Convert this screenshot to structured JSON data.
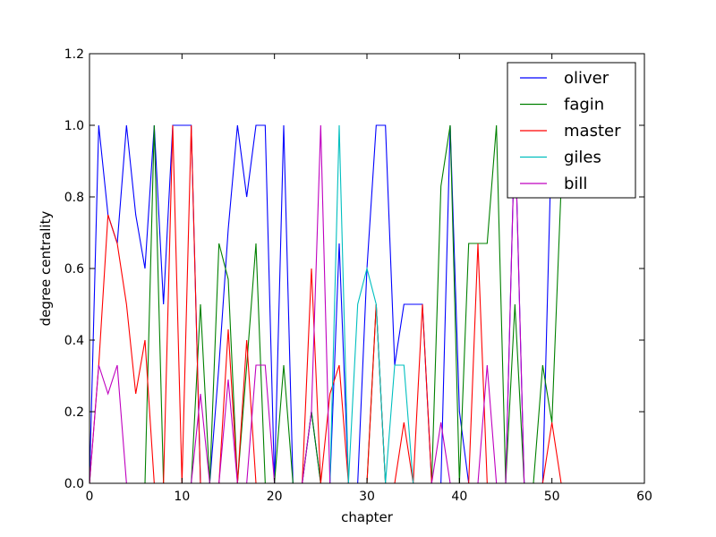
{
  "chart_data": {
    "type": "line",
    "xlabel": "chapter",
    "ylabel": "degree centrality",
    "xlim": [
      0,
      60
    ],
    "ylim": [
      0,
      1.2
    ],
    "xticks": [
      "0",
      "10",
      "20",
      "30",
      "40",
      "50",
      "60"
    ],
    "yticks": [
      "0.0",
      "0.2",
      "0.4",
      "0.6",
      "0.8",
      "1.0",
      "1.2"
    ],
    "grid": false,
    "legend_position": "top-right",
    "series": [
      {
        "name": "oliver",
        "color": "#0000ff",
        "x": [
          0,
          1,
          2,
          3,
          4,
          5,
          6,
          7,
          8,
          9,
          10,
          11,
          12,
          13,
          14,
          15,
          16,
          17,
          18,
          19,
          20,
          21,
          22,
          23,
          24,
          25,
          26,
          27,
          28,
          29,
          30,
          31,
          32,
          33,
          34,
          35,
          36,
          37,
          38,
          39,
          40,
          41,
          42,
          43,
          44,
          45,
          46,
          47,
          48,
          49,
          50,
          51
        ],
        "y": [
          0,
          1,
          0.75,
          0.67,
          1,
          0.75,
          0.6,
          1,
          0.5,
          1,
          1,
          1,
          0,
          0,
          0.33,
          0.71,
          1,
          0.8,
          1,
          1,
          0,
          1,
          0,
          0,
          0.2,
          0,
          0,
          0.67,
          0,
          0,
          0.6,
          1,
          1,
          0.33,
          0.5,
          0.5,
          0.5,
          0,
          0,
          1,
          0.2,
          0,
          0,
          0,
          0,
          0,
          1,
          0,
          0,
          0,
          1,
          0.83
        ]
      },
      {
        "name": "fagin",
        "color": "#008000",
        "x": [
          0,
          1,
          2,
          3,
          4,
          5,
          6,
          7,
          8,
          9,
          10,
          11,
          12,
          13,
          14,
          15,
          16,
          17,
          18,
          19,
          20,
          21,
          22,
          23,
          24,
          25,
          26,
          27,
          28,
          29,
          30,
          31,
          32,
          33,
          34,
          35,
          36,
          37,
          38,
          39,
          40,
          41,
          42,
          43,
          44,
          45,
          46,
          47,
          48,
          49,
          50,
          51
        ],
        "y": [
          0,
          0,
          0,
          0,
          0,
          0,
          0,
          1,
          0,
          0,
          0,
          0,
          0.5,
          0,
          0.67,
          0.57,
          0,
          0.33,
          0.67,
          0,
          0,
          0.33,
          0,
          0,
          0.2,
          0,
          0,
          0,
          0,
          0,
          0,
          0.5,
          0,
          0,
          0,
          0,
          0,
          0,
          0.83,
          1,
          0,
          0.67,
          0.67,
          0.67,
          1,
          0,
          0.5,
          0,
          0,
          0.33,
          0.17,
          0.83
        ]
      },
      {
        "name": "master",
        "color": "#ff0000",
        "x": [
          0,
          1,
          2,
          3,
          4,
          5,
          6,
          7,
          8,
          9,
          10,
          11,
          12,
          13,
          14,
          15,
          16,
          17,
          18,
          19,
          20,
          21,
          22,
          23,
          24,
          25,
          26,
          27,
          28,
          29,
          30,
          31,
          32,
          33,
          34,
          35,
          36,
          37,
          38,
          39,
          40,
          41,
          42,
          43,
          44,
          45,
          46,
          47,
          48,
          49,
          50,
          51
        ],
        "y": [
          0,
          0.33,
          0.75,
          0.67,
          0.5,
          0.25,
          0.4,
          0,
          0,
          1,
          0,
          1,
          0,
          0,
          0,
          0.43,
          0,
          0.4,
          0,
          0,
          0,
          0,
          0,
          0,
          0.6,
          0,
          0.25,
          0.33,
          0,
          0,
          0,
          0.5,
          0,
          0,
          0.17,
          0,
          0.5,
          0,
          0,
          0,
          0,
          0,
          0.67,
          0,
          0,
          0,
          0,
          0,
          0,
          0,
          0.17,
          0
        ]
      },
      {
        "name": "giles",
        "color": "#00bfbf",
        "x": [
          0,
          1,
          2,
          3,
          4,
          5,
          6,
          7,
          8,
          9,
          10,
          11,
          12,
          13,
          14,
          15,
          16,
          17,
          18,
          19,
          20,
          21,
          22,
          23,
          24,
          25,
          26,
          27,
          28,
          29,
          30,
          31,
          32,
          33,
          34,
          35,
          36,
          37,
          38,
          39,
          40,
          41,
          42,
          43,
          44,
          45,
          46,
          47,
          48,
          49,
          50,
          51
        ],
        "y": [
          0,
          0,
          0,
          0,
          0,
          0,
          0,
          0,
          0,
          0,
          0,
          0,
          0,
          0,
          0,
          0,
          0,
          0,
          0,
          0,
          0,
          0,
          0,
          0,
          0,
          0,
          0,
          1,
          0,
          0.5,
          0.6,
          0.5,
          0,
          0.33,
          0.33,
          0,
          0,
          0,
          0,
          0,
          0,
          0,
          0,
          0,
          0,
          0,
          0,
          0,
          0,
          0,
          0,
          0
        ]
      },
      {
        "name": "bill",
        "color": "#bf00bf",
        "x": [
          0,
          1,
          2,
          3,
          4,
          5,
          6,
          7,
          8,
          9,
          10,
          11,
          12,
          13,
          14,
          15,
          16,
          17,
          18,
          19,
          20,
          21,
          22,
          23,
          24,
          25,
          26,
          27,
          28,
          29,
          30,
          31,
          32,
          33,
          34,
          35,
          36,
          37,
          38,
          39,
          40,
          41,
          42,
          43,
          44,
          45,
          46,
          47,
          48,
          49,
          50,
          51
        ],
        "y": [
          0,
          0.33,
          0.25,
          0.33,
          0,
          0,
          0,
          0,
          0,
          0,
          0,
          0,
          0.25,
          0,
          0,
          0.29,
          0,
          0,
          0.33,
          0.33,
          0,
          0,
          0,
          0,
          0.2,
          1,
          0,
          0,
          0,
          0,
          0,
          0,
          0,
          0,
          0,
          0,
          0,
          0,
          0.17,
          0,
          0,
          0,
          0,
          0.33,
          0,
          0,
          1,
          0,
          0,
          0,
          0,
          0
        ]
      }
    ]
  }
}
